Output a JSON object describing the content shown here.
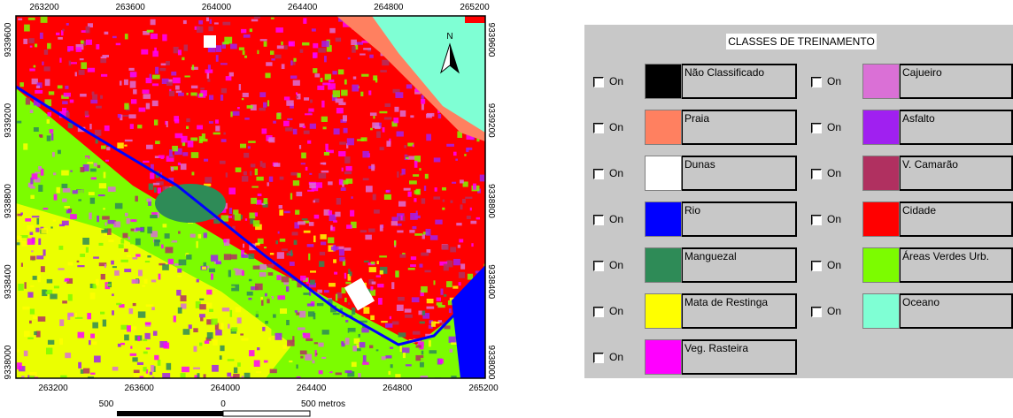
{
  "map": {
    "top_ticks": [
      263200,
      263600,
      264000,
      264400,
      264800,
      265200
    ],
    "bottom_ticks": [
      263200,
      263600,
      264000,
      264400,
      264800,
      265200
    ],
    "left_ticks": [
      9339600,
      9339200,
      9338800,
      9338400,
      9338000
    ],
    "right_ticks": [
      9339600,
      9339200,
      9338800,
      9338400,
      9338000
    ],
    "north": "N",
    "scale_labels": [
      "500",
      "0",
      "500 metros"
    ]
  },
  "legend": {
    "title": "CLASSES DE TREINAMENTO",
    "checkbox_label": "On",
    "classes": [
      {
        "name": "Não Classificado",
        "color": "#000000"
      },
      {
        "name": "Praia",
        "color": "#ff8060"
      },
      {
        "name": "Dunas",
        "color": "#ffffff"
      },
      {
        "name": "Rio",
        "color": "#0000ff"
      },
      {
        "name": "Manguezal",
        "color": "#2e8b57"
      },
      {
        "name": "Mata de Restinga",
        "color": "#ffff00"
      },
      {
        "name": "Veg. Rasteira",
        "color": "#ff00ff"
      },
      {
        "name": "Cajueiro",
        "color": "#da70d6"
      },
      {
        "name": "Asfalto",
        "color": "#a020f0"
      },
      {
        "name": "V. Camarão",
        "color": "#b03060"
      },
      {
        "name": "Cidade",
        "color": "#ff0000"
      },
      {
        "name": "Áreas Verdes Urb.",
        "color": "#7cfc00"
      },
      {
        "name": "Oceano",
        "color": "#7fffd4"
      }
    ]
  }
}
